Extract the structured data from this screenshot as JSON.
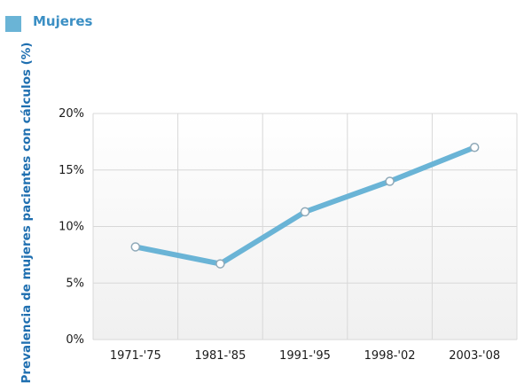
{
  "chart_data": {
    "type": "line",
    "categories": [
      "1971-'75",
      "1981-'85",
      "1991-'95",
      "1998-'02",
      "2003-'08"
    ],
    "series": [
      {
        "name": "Mujeres",
        "values": [
          8.2,
          6.7,
          11.3,
          14.0,
          17.0
        ]
      }
    ],
    "ylabel": "Prevalencia de mujeres pacientes con cálculos (%)",
    "xlabel": "",
    "ylim": [
      0,
      20
    ],
    "yticks": [
      "0%",
      "5%",
      "10%",
      "15%",
      "20%"
    ],
    "grid": true,
    "legend_placement": "top-left"
  },
  "colors": {
    "series": "#6ab4d6",
    "legend_text": "#3b8fc4",
    "axis_title": "#1f6fb0",
    "grid": "#d8d8d8",
    "plot_bg_top": "#ffffff",
    "plot_bg_bottom": "#f0f0f0"
  }
}
